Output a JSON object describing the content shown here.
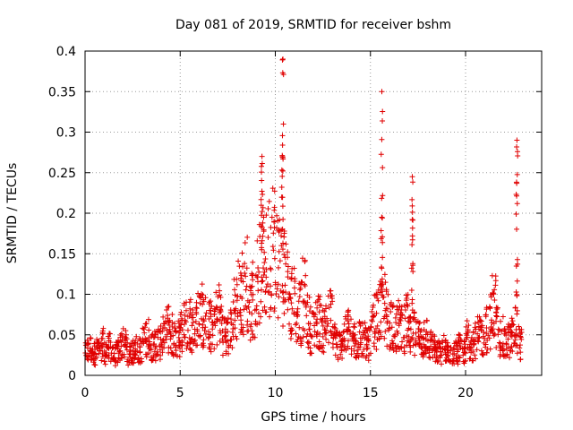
{
  "chart_data": {
    "type": "scatter",
    "title": "Day 081 of 2019, SRMTID for receiver bshm",
    "xlabel": "GPS time / hours",
    "ylabel": "SRMTID / TECUs",
    "xlim": [
      0,
      24
    ],
    "ylim": [
      0,
      0.4
    ],
    "xticks": [
      0,
      5,
      10,
      15,
      20
    ],
    "xtick_labels": [
      "0",
      "5",
      "10",
      "15",
      "20"
    ],
    "yticks": [
      0,
      0.05,
      0.1,
      0.15,
      0.2,
      0.25,
      0.3,
      0.35,
      0.4
    ],
    "ytick_labels": [
      "0",
      "0.05",
      "0.1",
      "0.15",
      "0.2",
      "0.25",
      "0.3",
      "0.35",
      "0.4"
    ],
    "grid": true,
    "marker": "+",
    "color": "#e00000",
    "series": [
      {
        "name": "SRMTID",
        "description_points": "approximate envelope samples of dense scatter",
        "x": [
          0.1,
          0.3,
          0.5,
          0.7,
          0.9,
          1.1,
          1.3,
          1.5,
          1.7,
          1.9,
          2.1,
          2.3,
          2.5,
          2.7,
          2.9,
          3.1,
          3.3,
          3.5,
          3.7,
          3.9,
          4.1,
          4.3,
          4.5,
          4.7,
          4.9,
          5.1,
          5.3,
          5.5,
          5.7,
          5.9,
          6.1,
          6.3,
          6.5,
          6.7,
          6.9,
          7.1,
          7.3,
          7.5,
          7.7,
          7.9,
          8.1,
          8.3,
          8.5,
          8.7,
          8.9,
          9.1,
          9.3,
          9.5,
          9.7,
          9.9,
          10.1,
          10.3,
          10.5,
          10.7,
          10.9,
          11.1,
          11.3,
          11.5,
          11.7,
          11.9,
          12.1,
          12.3,
          12.5,
          12.7,
          12.9,
          13.1,
          13.3,
          13.5,
          13.7,
          13.9,
          14.1,
          14.3,
          14.5,
          14.7,
          14.9,
          15.1,
          15.3,
          15.5,
          15.7,
          15.9,
          16.1,
          16.3,
          16.5,
          16.7,
          16.9,
          17.1,
          17.3,
          17.5,
          17.7,
          17.9,
          18.1,
          18.3,
          18.5,
          18.7,
          18.9,
          19.1,
          19.3,
          19.5,
          19.7,
          19.9,
          20.1,
          20.3,
          20.5,
          20.7,
          20.9,
          21.1,
          21.3,
          21.5,
          21.7,
          21.9,
          22.1,
          22.3,
          22.5,
          22.7,
          22.9
        ],
        "y": [
          0.03,
          0.035,
          0.028,
          0.032,
          0.04,
          0.03,
          0.036,
          0.025,
          0.03,
          0.038,
          0.04,
          0.028,
          0.03,
          0.035,
          0.032,
          0.045,
          0.05,
          0.04,
          0.038,
          0.042,
          0.05,
          0.06,
          0.055,
          0.045,
          0.05,
          0.06,
          0.065,
          0.07,
          0.06,
          0.075,
          0.08,
          0.07,
          0.065,
          0.06,
          0.075,
          0.08,
          0.055,
          0.05,
          0.065,
          0.09,
          0.1,
          0.11,
          0.12,
          0.09,
          0.1,
          0.13,
          0.15,
          0.14,
          0.16,
          0.17,
          0.15,
          0.2,
          0.13,
          0.12,
          0.1,
          0.09,
          0.08,
          0.1,
          0.07,
          0.06,
          0.065,
          0.07,
          0.06,
          0.07,
          0.075,
          0.05,
          0.04,
          0.045,
          0.05,
          0.06,
          0.045,
          0.04,
          0.05,
          0.045,
          0.04,
          0.06,
          0.07,
          0.08,
          0.09,
          0.075,
          0.07,
          0.06,
          0.065,
          0.06,
          0.07,
          0.05,
          0.055,
          0.05,
          0.045,
          0.05,
          0.04,
          0.035,
          0.03,
          0.03,
          0.035,
          0.03,
          0.025,
          0.03,
          0.035,
          0.03,
          0.05,
          0.04,
          0.045,
          0.05,
          0.05,
          0.06,
          0.07,
          0.09,
          0.06,
          0.05,
          0.04,
          0.045,
          0.05,
          0.06,
          0.04
        ]
      }
    ],
    "spikes": [
      {
        "x": 10.4,
        "y_max": 0.39
      },
      {
        "x": 15.6,
        "y_max": 0.35
      },
      {
        "x": 17.2,
        "y_max": 0.245
      },
      {
        "x": 22.7,
        "y_max": 0.29
      },
      {
        "x": 9.3,
        "y_max": 0.27
      }
    ]
  }
}
